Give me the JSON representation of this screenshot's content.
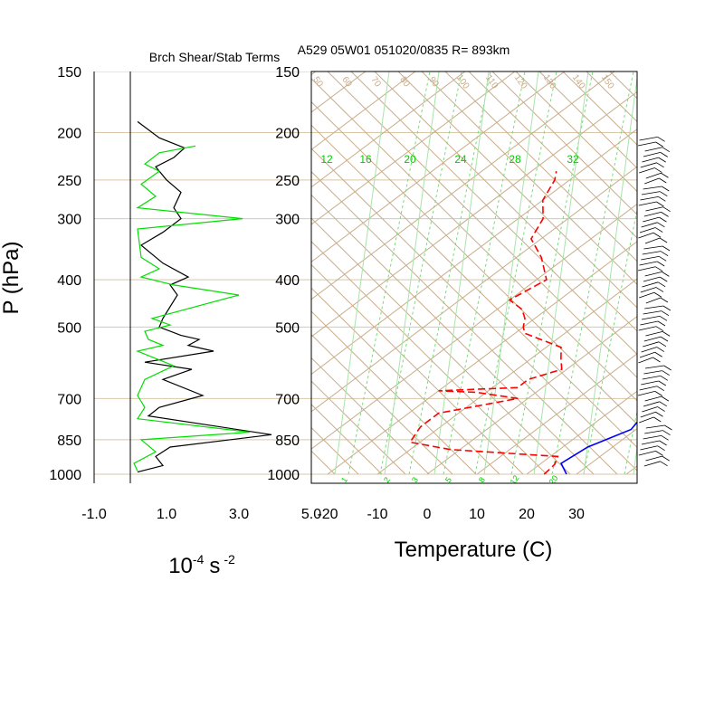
{
  "header": {
    "left_title": "Brch Shear/Stab Terms",
    "right_title": "A529 05W01 051020/0835 R= 893km"
  },
  "chart_data": [
    {
      "type": "line",
      "panel": "brch-shear-stab",
      "ylabel": "P (hPa)",
      "xlabel": "10⁻⁴ s ⁻²",
      "x_label_main": "10",
      "x_label_exp1": "-4",
      "x_label_s": "s",
      "x_label_exp2": "-2",
      "y_scale": "log",
      "ylim": [
        1000,
        150
      ],
      "xlim": [
        -1.0,
        5.0
      ],
      "x_ticks": [
        "-1.0",
        "1.0",
        "3.0",
        "5.0"
      ],
      "y_ticks": [
        "150",
        "200",
        "250",
        "300",
        "400",
        "500",
        "700",
        "850",
        "1000"
      ],
      "grid": "horizontal",
      "series": [
        {
          "color": "#000000",
          "points": [
            [
              0.2,
              190
            ],
            [
              0.8,
              205
            ],
            [
              1.5,
              215
            ],
            [
              1.2,
              225
            ],
            [
              0.7,
              235
            ],
            [
              1.0,
              250
            ],
            [
              1.4,
              265
            ],
            [
              1.2,
              285
            ],
            [
              1.4,
              300
            ],
            [
              0.9,
              320
            ],
            [
              0.3,
              340
            ],
            [
              0.9,
              370
            ],
            [
              1.6,
              395
            ],
            [
              1.1,
              410
            ],
            [
              1.3,
              430
            ],
            [
              0.9,
              480
            ],
            [
              0.8,
              500
            ],
            [
              1.4,
              520
            ],
            [
              1.9,
              530
            ],
            [
              1.6,
              545
            ],
            [
              2.3,
              560
            ],
            [
              0.4,
              590
            ],
            [
              1.7,
              610
            ],
            [
              0.9,
              640
            ],
            [
              2.0,
              690
            ],
            [
              0.8,
              730
            ],
            [
              0.5,
              760
            ],
            [
              3.9,
              830
            ],
            [
              1.1,
              880
            ],
            [
              0.7,
              920
            ],
            [
              0.9,
              960
            ],
            [
              0.2,
              990
            ]
          ]
        },
        {
          "color": "#00dd00",
          "points": [
            [
              1.8,
              213
            ],
            [
              0.8,
              220
            ],
            [
              0.4,
              232
            ],
            [
              0.8,
              240
            ],
            [
              0.3,
              255
            ],
            [
              0.7,
              270
            ],
            [
              0.2,
              285
            ],
            [
              3.1,
              300
            ],
            [
              0.2,
              315
            ],
            [
              0.3,
              360
            ],
            [
              0.8,
              380
            ],
            [
              0.3,
              395
            ],
            [
              1.2,
              410
            ],
            [
              3.0,
              430
            ],
            [
              0.6,
              480
            ],
            [
              1.1,
              495
            ],
            [
              0.4,
              510
            ],
            [
              0.5,
              530
            ],
            [
              0.9,
              545
            ],
            [
              0.2,
              560
            ],
            [
              1.2,
              600
            ],
            [
              0.4,
              640
            ],
            [
              0.2,
              690
            ],
            [
              0.4,
              730
            ],
            [
              0.2,
              770
            ],
            [
              3.3,
              820
            ],
            [
              0.3,
              850
            ],
            [
              0.7,
              900
            ],
            [
              0.1,
              950
            ],
            [
              0.2,
              985
            ]
          ]
        }
      ]
    },
    {
      "type": "line",
      "panel": "skew-t",
      "xlabel": "Temperature (C)",
      "y_scale": "log",
      "ylim": [
        1000,
        150
      ],
      "x_ticks": [
        "-20",
        "-10",
        "0",
        "10",
        "20",
        "30"
      ],
      "y_ticks": [
        "150",
        "200",
        "250",
        "300",
        "400",
        "500",
        "700",
        "850",
        "1000"
      ],
      "mixing_ratio_labels_top": [
        "12",
        "16",
        "20",
        "24",
        "28",
        "32"
      ],
      "mixing_ratio_labels_bottom": [
        "1",
        "2",
        "3",
        "5",
        "8",
        "12",
        "20"
      ],
      "isotherm_labels": [
        "50",
        "60",
        "70",
        "80",
        "90",
        "100",
        "110",
        "120",
        "130",
        "140",
        "150"
      ],
      "series": [
        {
          "name": "temperature",
          "color": "#0000ff",
          "points": [
            [
              28.0,
              1000
            ],
            [
              24.0,
              950
            ],
            [
              25.0,
              880
            ],
            [
              29.0,
              810
            ],
            [
              26.0,
              700
            ],
            [
              20.0,
              600
            ],
            [
              18.5,
              550
            ],
            [
              13.0,
              500
            ],
            [
              7.0,
              400
            ],
            [
              -0.5,
              300
            ],
            [
              -11.5,
              250
            ],
            [
              -23.0,
              200
            ],
            [
              -34.0,
              170
            ]
          ]
        },
        {
          "name": "dewpoint",
          "color": "#ff0000",
          "dashed": true,
          "points": [
            [
              23.5,
              1000
            ],
            [
              23.0,
              955
            ],
            [
              21.5,
              920
            ],
            [
              -2.0,
              890
            ],
            [
              -12.0,
              860
            ],
            [
              -14.0,
              800
            ],
            [
              -14.0,
              750
            ],
            [
              -2.0,
              700
            ],
            [
              -12.0,
              680
            ],
            [
              -20.0,
              675
            ],
            [
              -5.0,
              665
            ],
            [
              -5.0,
              640
            ],
            [
              -1.0,
              610
            ],
            [
              -4.0,
              580
            ],
            [
              -7.0,
              550
            ],
            [
              -18.0,
              515
            ],
            [
              -20.0,
              500
            ],
            [
              -22.0,
              480
            ],
            [
              -25.0,
              460
            ],
            [
              -30.0,
              440
            ],
            [
              -28.0,
              400
            ],
            [
              -35.0,
              360
            ],
            [
              -42.0,
              330
            ],
            [
              -45.0,
              300
            ],
            [
              -50.0,
              275
            ],
            [
              -53.0,
              250
            ],
            [
              -55.0,
              240
            ]
          ]
        }
      ]
    }
  ]
}
